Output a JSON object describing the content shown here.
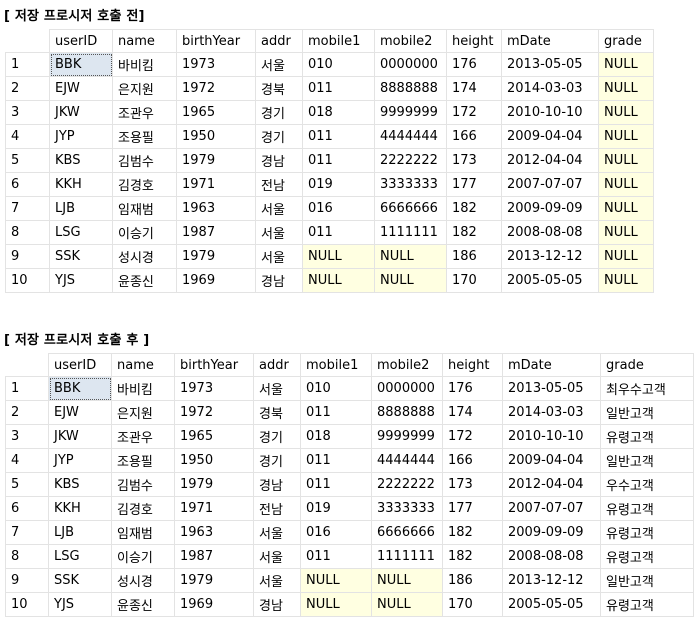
{
  "before": {
    "title": "[ 저장 프로시저 호출 전]",
    "columns": [
      "userID",
      "name",
      "birthYear",
      "addr",
      "mobile1",
      "mobile2",
      "height",
      "mDate",
      "grade"
    ],
    "rows": [
      [
        "1",
        "BBK",
        "바비킴",
        "1973",
        "서울",
        "010",
        "0000000",
        "176",
        "2013-05-05",
        "NULL"
      ],
      [
        "2",
        "EJW",
        "은지원",
        "1972",
        "경북",
        "011",
        "8888888",
        "174",
        "2014-03-03",
        "NULL"
      ],
      [
        "3",
        "JKW",
        "조관우",
        "1965",
        "경기",
        "018",
        "9999999",
        "172",
        "2010-10-10",
        "NULL"
      ],
      [
        "4",
        "JYP",
        "조용필",
        "1950",
        "경기",
        "011",
        "4444444",
        "166",
        "2009-04-04",
        "NULL"
      ],
      [
        "5",
        "KBS",
        "김범수",
        "1979",
        "경남",
        "011",
        "2222222",
        "173",
        "2012-04-04",
        "NULL"
      ],
      [
        "6",
        "KKH",
        "김경호",
        "1971",
        "전남",
        "019",
        "3333333",
        "177",
        "2007-07-07",
        "NULL"
      ],
      [
        "7",
        "LJB",
        "임재범",
        "1963",
        "서울",
        "016",
        "6666666",
        "182",
        "2009-09-09",
        "NULL"
      ],
      [
        "8",
        "LSG",
        "이승기",
        "1987",
        "서울",
        "011",
        "1111111",
        "182",
        "2008-08-08",
        "NULL"
      ],
      [
        "9",
        "SSK",
        "성시경",
        "1979",
        "서울",
        "NULL",
        "NULL",
        "186",
        "2013-12-12",
        "NULL"
      ],
      [
        "10",
        "YJS",
        "윤종신",
        "1969",
        "경남",
        "NULL",
        "NULL",
        "170",
        "2005-05-05",
        "NULL"
      ]
    ]
  },
  "after": {
    "title": "[ 저장 프로시저 호출 후 ]",
    "columns": [
      "userID",
      "name",
      "birthYear",
      "addr",
      "mobile1",
      "mobile2",
      "height",
      "mDate",
      "grade"
    ],
    "rows": [
      [
        "1",
        "BBK",
        "바비킴",
        "1973",
        "서울",
        "010",
        "0000000",
        "176",
        "2013-05-05",
        "최우수고객"
      ],
      [
        "2",
        "EJW",
        "은지원",
        "1972",
        "경북",
        "011",
        "8888888",
        "174",
        "2014-03-03",
        "일반고객"
      ],
      [
        "3",
        "JKW",
        "조관우",
        "1965",
        "경기",
        "018",
        "9999999",
        "172",
        "2010-10-10",
        "유령고객"
      ],
      [
        "4",
        "JYP",
        "조용필",
        "1950",
        "경기",
        "011",
        "4444444",
        "166",
        "2009-04-04",
        "일반고객"
      ],
      [
        "5",
        "KBS",
        "김범수",
        "1979",
        "경남",
        "011",
        "2222222",
        "173",
        "2012-04-04",
        "우수고객"
      ],
      [
        "6",
        "KKH",
        "김경호",
        "1971",
        "전남",
        "019",
        "3333333",
        "177",
        "2007-07-07",
        "유령고객"
      ],
      [
        "7",
        "LJB",
        "임재범",
        "1963",
        "서울",
        "016",
        "6666666",
        "182",
        "2009-09-09",
        "유령고객"
      ],
      [
        "8",
        "LSG",
        "이승기",
        "1987",
        "서울",
        "011",
        "1111111",
        "182",
        "2008-08-08",
        "유령고객"
      ],
      [
        "9",
        "SSK",
        "성시경",
        "1979",
        "서울",
        "NULL",
        "NULL",
        "186",
        "2013-12-12",
        "일반고객"
      ],
      [
        "10",
        "YJS",
        "윤종신",
        "1969",
        "경남",
        "NULL",
        "NULL",
        "170",
        "2005-05-05",
        "유령고객"
      ]
    ]
  },
  "colors": {
    "null_bg": "#ffffe1",
    "selected_bg": "#dde6f0",
    "grid_line": "#e3e3e3"
  }
}
